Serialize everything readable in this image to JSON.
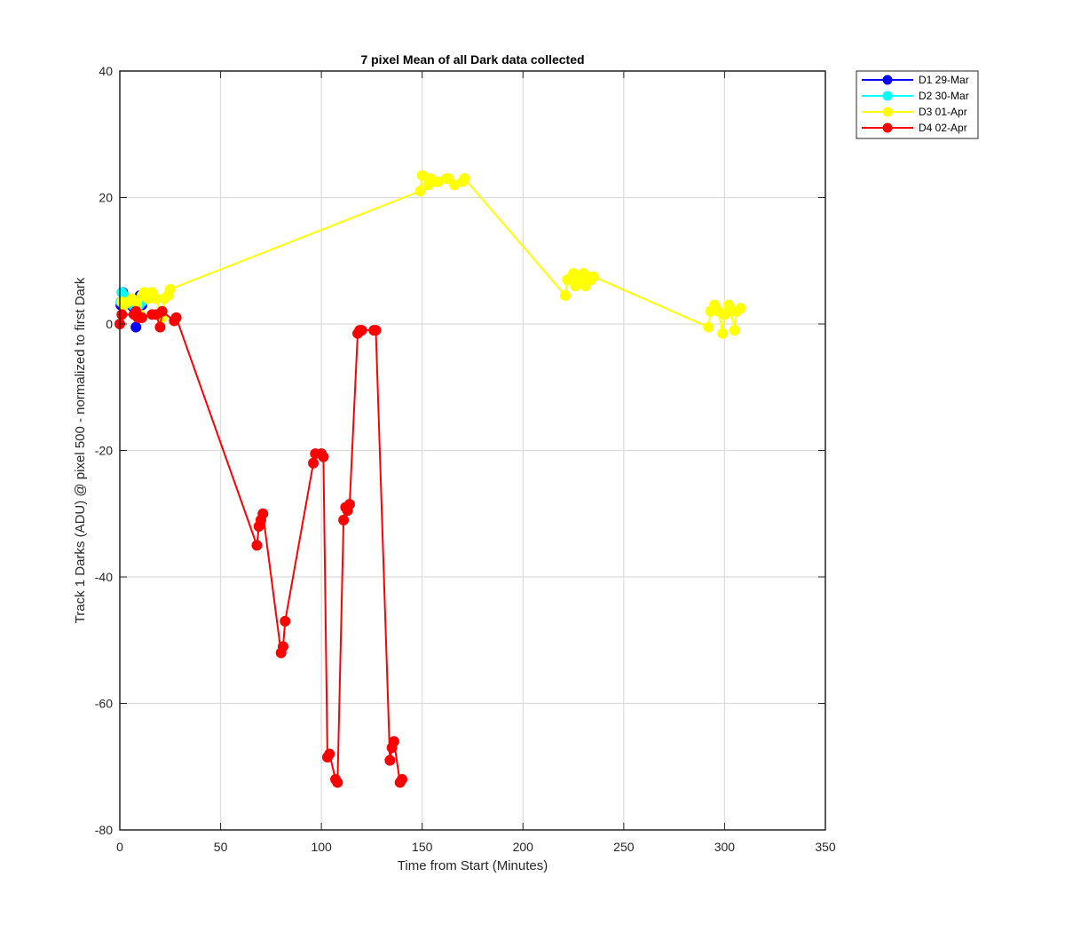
{
  "chart_data": {
    "type": "line",
    "title": "7 pixel Mean of all Dark data collected",
    "xlabel": "Time from Start (Minutes)",
    "ylabel": "Track 1 Darks (ADU) @ pixel 500 - normalized to first Dark",
    "xlim": [
      0,
      350
    ],
    "ylim": [
      -80,
      40
    ],
    "xticks": [
      0,
      50,
      100,
      150,
      200,
      250,
      300,
      350
    ],
    "yticks": [
      -80,
      -60,
      -40,
      -20,
      0,
      20,
      40
    ],
    "xtick_labels": [
      "0",
      "50",
      "100",
      "150",
      "200",
      "250",
      "300",
      "350"
    ],
    "ytick_labels": [
      "-80",
      "-60",
      "-40",
      "-20",
      "0",
      "20",
      "40"
    ],
    "grid": true,
    "legend_position": "outside-top-right",
    "series": [
      {
        "name": "D1 29-Mar",
        "color": "#0000ff",
        "x": [
          0.5,
          1.5,
          2.5,
          4,
          5.5,
          7,
          8,
          9,
          10,
          11
        ],
        "y": [
          3,
          5,
          4,
          3.5,
          3,
          2.5,
          -0.5,
          3.5,
          4.5,
          3
        ]
      },
      {
        "name": "D2 30-Mar",
        "color": "#00ffff",
        "x": [
          0.5,
          1,
          2,
          3.5,
          5,
          6.5,
          8,
          9.5,
          11
        ],
        "y": [
          3.5,
          5,
          4.5,
          4,
          3.5,
          3,
          2.5,
          3,
          3.5
        ]
      },
      {
        "name": "D3 01-Apr",
        "color": "#ffff00",
        "x": [
          1,
          2,
          4,
          6,
          8,
          10,
          11,
          12,
          14,
          16,
          18,
          21,
          22,
          24,
          25,
          149,
          150,
          153,
          154,
          156,
          158,
          162,
          163,
          166,
          170,
          171,
          221,
          222,
          225,
          226,
          228,
          230,
          231,
          232,
          234,
          235,
          292,
          293,
          295,
          297,
          299,
          300,
          302,
          303,
          305,
          306,
          308
        ],
        "y": [
          3.5,
          3,
          3.5,
          4,
          3.5,
          1.5,
          4.5,
          5,
          4,
          5,
          4,
          1,
          4,
          4.5,
          5.5,
          21,
          23.5,
          22,
          23,
          22.5,
          22.5,
          23,
          23,
          22,
          22.5,
          23,
          4.5,
          7,
          8,
          6,
          7,
          8,
          6,
          7.5,
          7,
          7.5,
          -0.5,
          2,
          3,
          2,
          -1.5,
          1.5,
          3,
          2,
          -1,
          2,
          2.5
        ]
      },
      {
        "name": "D4 02-Apr",
        "color": "#ff0000",
        "x": [
          0,
          1,
          7,
          8,
          9,
          10,
          11,
          16,
          18,
          20,
          21,
          27,
          28,
          68,
          69,
          70,
          71,
          80,
          81,
          82,
          96,
          97,
          100,
          101,
          103,
          104,
          107,
          108,
          111,
          112,
          113,
          114,
          118,
          119,
          120,
          126,
          127,
          134,
          135,
          136,
          139,
          140
        ],
        "y": [
          0,
          1.5,
          1.5,
          2,
          1,
          1,
          1,
          1.5,
          1.5,
          -0.5,
          2,
          0.5,
          1,
          -35,
          -32,
          -31,
          -30,
          -52,
          -51,
          -47,
          -22,
          -20.5,
          -20.5,
          -21,
          -68.5,
          -68,
          -72,
          -72.5,
          -31,
          -29,
          -29.5,
          -28.5,
          -1.5,
          -1,
          -1,
          -1,
          -1,
          -69,
          -67,
          -66,
          -72.5,
          -72
        ]
      }
    ]
  }
}
